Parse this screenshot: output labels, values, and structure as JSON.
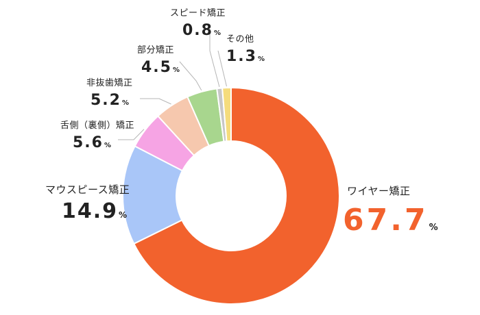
{
  "chart_data": {
    "type": "pie",
    "categories": [
      "ワイヤー矯正",
      "マウスピース矯正",
      "舌側（裏側）矯正",
      "非抜歯矯正",
      "部分矯正",
      "スピード矯正",
      "その他"
    ],
    "values": [
      67.7,
      14.9,
      5.6,
      5.2,
      4.5,
      0.8,
      1.3
    ],
    "value_labels": [
      "67.7",
      "14.9",
      "5.6",
      "5.2",
      "4.5",
      "0.8",
      "1.3"
    ],
    "unit": "%",
    "colors": [
      "#f2622d",
      "#a9c6f8",
      "#f6a4e4",
      "#f6c8ae",
      "#a8d68e",
      "#c7c7c7",
      "#f5dc7c"
    ],
    "highlight_color": "#f2622d",
    "donut": true,
    "label_placement": "outside"
  }
}
